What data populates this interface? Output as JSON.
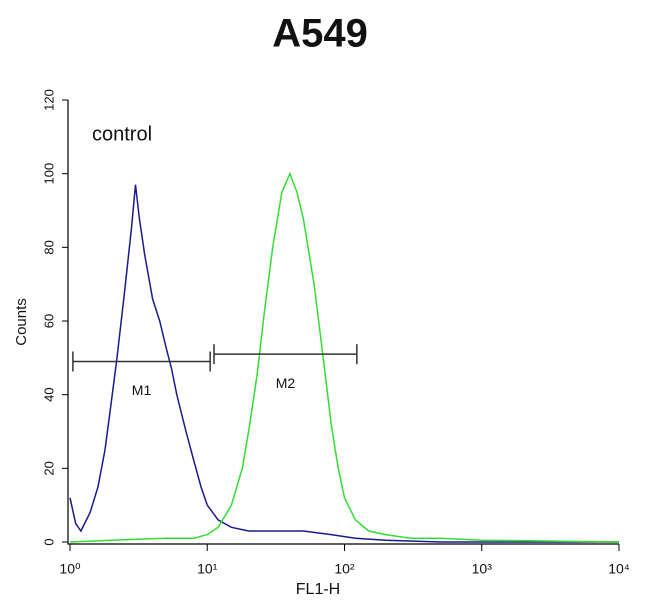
{
  "chart_data": {
    "type": "histogram-line",
    "title": "A549",
    "x_label": "FL1-H",
    "y_label": "Counts",
    "x_scale": "log",
    "xlim": [
      1,
      10000
    ],
    "ylim": [
      0,
      120
    ],
    "xticks": [
      {
        "value": 1,
        "label": "10⁰"
      },
      {
        "value": 10,
        "label": "10¹"
      },
      {
        "value": 100,
        "label": "10²"
      },
      {
        "value": 1000,
        "label": "10³"
      },
      {
        "value": 10000,
        "label": "10⁴"
      }
    ],
    "yticks": [
      0,
      20,
      40,
      60,
      80,
      100,
      120
    ],
    "series": [
      {
        "name": "control",
        "color": "#1a1a8c",
        "x": [
          1,
          1.1,
          1.2,
          1.4,
          1.6,
          1.8,
          2,
          2.2,
          2.5,
          2.8,
          3,
          3.2,
          3.5,
          4,
          4.5,
          5,
          5.5,
          6,
          7,
          8,
          9,
          10,
          12,
          15,
          20,
          30,
          50,
          80,
          120,
          200,
          500,
          1000,
          10000
        ],
        "values": [
          12,
          5,
          3,
          8,
          15,
          25,
          38,
          50,
          68,
          85,
          97,
          88,
          78,
          66,
          60,
          53,
          47,
          40,
          30,
          22,
          15,
          10,
          6,
          4,
          3,
          3,
          3,
          2,
          1,
          0.5,
          0,
          0,
          0
        ]
      },
      {
        "color": "#33dd33",
        "x": [
          1,
          2,
          5,
          8,
          10,
          12,
          15,
          18,
          20,
          23,
          26,
          30,
          35,
          40,
          45,
          50,
          60,
          70,
          80,
          90,
          100,
          120,
          150,
          200,
          300,
          500,
          1000,
          10000
        ],
        "values": [
          0,
          0.5,
          1,
          1,
          2,
          4,
          10,
          20,
          30,
          45,
          62,
          80,
          95,
          100,
          95,
          88,
          70,
          50,
          32,
          20,
          12,
          6,
          3,
          2,
          1,
          1,
          0.5,
          0
        ]
      }
    ],
    "markers": [
      {
        "label": "M1",
        "range": [
          1.05,
          10.5
        ],
        "y": 49
      },
      {
        "label": "M2",
        "range": [
          11.2,
          123
        ],
        "y": 51
      }
    ]
  }
}
